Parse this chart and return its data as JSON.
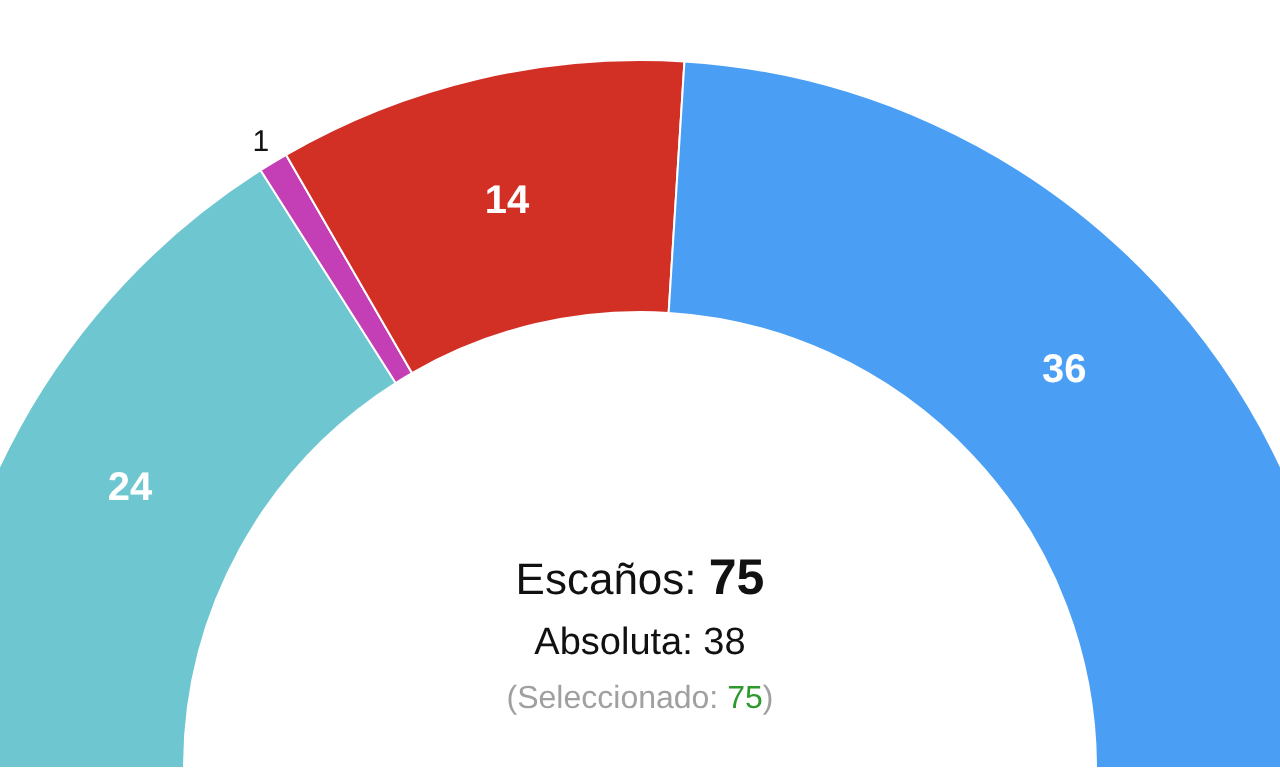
{
  "chart_data": {
    "type": "donut",
    "categories": [
      null,
      null,
      null,
      null
    ],
    "values": [
      24,
      1,
      14,
      36
    ],
    "colors": [
      "#6ec6d0",
      "#c43fb5",
      "#d22f25",
      "#4a9ff5"
    ],
    "data_labels": true,
    "annotations": [
      "Escaños: 75",
      "Absoluta: 38",
      "(Seleccionado: 75)"
    ]
  }
}
